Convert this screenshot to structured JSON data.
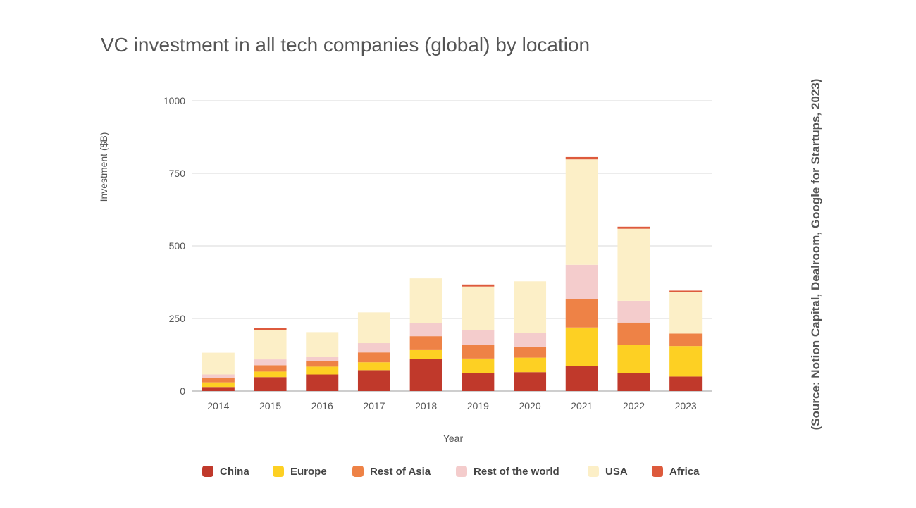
{
  "chart_data": {
    "type": "bar",
    "stacked": true,
    "title": "VC investment in all tech companies (global) by location",
    "xlabel": "Year",
    "ylabel": "Investment ($B)",
    "ylim": [
      0,
      1000
    ],
    "yticks": [
      0,
      250,
      500,
      750,
      1000
    ],
    "grid": true,
    "legend_position": "bottom",
    "source_note": "(Source: Notion Capital, Dealroom, Google for Startups, 2023)",
    "categories": [
      "2014",
      "2015",
      "2016",
      "2017",
      "2018",
      "2019",
      "2020",
      "2021",
      "2022",
      "2023"
    ],
    "series": [
      {
        "name": "China",
        "color": "#c0392b",
        "values": [
          14,
          48,
          57,
          72,
          110,
          62,
          65,
          85,
          63,
          50
        ]
      },
      {
        "name": "Europe",
        "color": "#fdd023",
        "values": [
          16,
          19,
          27,
          27,
          31,
          50,
          50,
          134,
          96,
          105
        ]
      },
      {
        "name": "Rest of Asia",
        "color": "#ee8246",
        "values": [
          15,
          22,
          18,
          34,
          48,
          48,
          38,
          98,
          77,
          43
        ]
      },
      {
        "name": "Rest of the world",
        "color": "#f4cccc",
        "values": [
          12,
          20,
          16,
          32,
          45,
          50,
          47,
          118,
          75,
          0
        ]
      },
      {
        "name": "USA",
        "color": "#fcefc7",
        "values": [
          75,
          100,
          85,
          106,
          154,
          150,
          178,
          363,
          248,
          142
        ]
      },
      {
        "name": "Africa",
        "color": "#dd5a3c",
        "values": [
          0,
          7,
          0,
          0,
          0,
          7,
          0,
          8,
          7,
          6
        ]
      }
    ]
  }
}
